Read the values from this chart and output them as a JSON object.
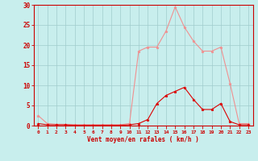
{
  "x_labels": [
    0,
    1,
    2,
    3,
    4,
    5,
    6,
    7,
    8,
    9,
    10,
    11,
    12,
    13,
    14,
    15,
    16,
    17,
    18,
    19,
    20,
    21,
    22,
    23
  ],
  "rafales": [
    2.5,
    0.5,
    0.3,
    0.3,
    0.2,
    0.2,
    0.2,
    0.2,
    0.2,
    0.2,
    0.5,
    18.5,
    19.5,
    19.5,
    23.5,
    29.5,
    24.5,
    21.0,
    18.5,
    18.5,
    19.5,
    10.5,
    0.5,
    0.5
  ],
  "vent_moyen": [
    0.5,
    0.2,
    0.2,
    0.2,
    0.1,
    0.1,
    0.1,
    0.1,
    0.1,
    0.1,
    0.2,
    0.5,
    1.5,
    5.5,
    7.5,
    8.5,
    9.5,
    6.5,
    4.0,
    4.0,
    5.5,
    1.0,
    0.2,
    0.2
  ],
  "xlabel": "Vent moyen/en rafales ( km/h )",
  "ylim": [
    0,
    30
  ],
  "xlim": [
    -0.5,
    23.5
  ],
  "yticks": [
    0,
    5,
    10,
    15,
    20,
    25,
    30
  ],
  "bg_color": "#c8eeed",
  "grid_color": "#a0cccc",
  "line_color_rafales": "#f09090",
  "line_color_moyen": "#dd0000",
  "axis_color": "#cc0000",
  "tick_color": "#cc0000",
  "label_color": "#cc0000",
  "figsize": [
    3.2,
    2.0
  ],
  "dpi": 100
}
